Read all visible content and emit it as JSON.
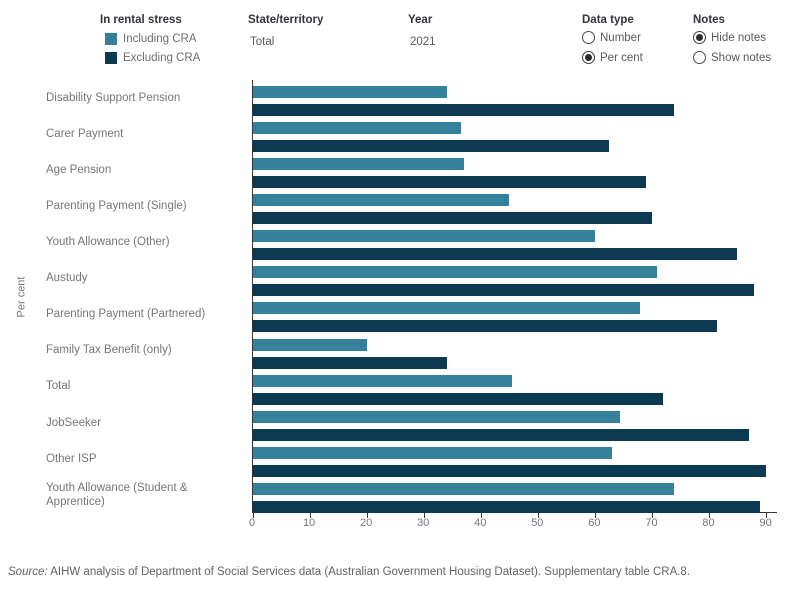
{
  "header": {
    "legend": {
      "title": "In rental stress",
      "items": [
        {
          "label": "Including CRA",
          "color": "#35809B"
        },
        {
          "label": "Excluding CRA",
          "color": "#0C3A53"
        }
      ]
    },
    "filters": [
      {
        "label": "State/territory",
        "value": "Total"
      },
      {
        "label": "Year",
        "value": "2021"
      }
    ],
    "radio_groups": [
      {
        "label": "Data type",
        "options": [
          {
            "label": "Number",
            "selected": false
          },
          {
            "label": "Per cent",
            "selected": true
          }
        ]
      },
      {
        "label": "Notes",
        "options": [
          {
            "label": "Hide notes",
            "selected": true
          },
          {
            "label": "Show notes",
            "selected": false
          }
        ]
      }
    ]
  },
  "chart_data": {
    "type": "bar",
    "orientation": "horizontal",
    "title": "",
    "ylabel": "Per cent",
    "grid": false,
    "legend_position": "top-left",
    "axis_range": [
      0,
      92
    ],
    "x_ticks": [
      0,
      10,
      20,
      30,
      40,
      50,
      60,
      70,
      80,
      90
    ],
    "categories": [
      "Disability Support Pension",
      "Carer Payment",
      "Age Pension",
      "Parenting Payment (Single)",
      "Youth Allowance (Other)",
      "Austudy",
      "Parenting Payment (Partnered)",
      "Family Tax Benefit (only)",
      "Total",
      "JobSeeker",
      "Other ISP",
      "Youth Allowance (Student & Apprentice)"
    ],
    "series": [
      {
        "name": "Including CRA",
        "color": "#35809B",
        "values": [
          34,
          36.5,
          37,
          45,
          60,
          71,
          68,
          20,
          45.5,
          64.5,
          63,
          74
        ]
      },
      {
        "name": "Excluding CRA",
        "color": "#0C3A53",
        "values": [
          74,
          62.5,
          69,
          70,
          85,
          88,
          81.5,
          34,
          72,
          87,
          90,
          89
        ]
      }
    ]
  },
  "footer": {
    "source_prefix": "Source:",
    "source_text": "AIHW analysis of Department of Social Services data (Australian Government Housing Dataset). Supplementary table CRA.8."
  }
}
